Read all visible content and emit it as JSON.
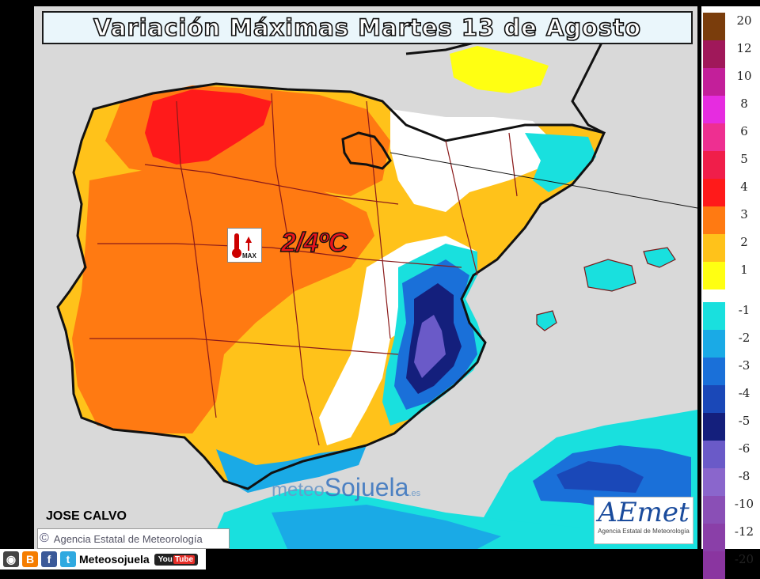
{
  "title": "Variación Máximas Martes 13 de Agosto",
  "highlight": "2/4ºC",
  "thermometer": {
    "label": "MAX",
    "icon": "thermometer-up-icon"
  },
  "author": "JOSE CALVO",
  "agency_credit": "Agencia Estatal de Meteorología",
  "agency_logo": {
    "text": "AEmet",
    "subtitle": "Agencia Estatal de Meteorología"
  },
  "watermark": {
    "part1": "meteo",
    "part2": "Sojuela",
    "suffix": ".es"
  },
  "social": {
    "handle": "Meteosojuela",
    "youtube_label": "You",
    "youtube_tube": "Tube",
    "icons": [
      "instagram-icon",
      "blogger-icon",
      "facebook-icon",
      "twitter-icon",
      "youtube-icon"
    ]
  },
  "legend": [
    {
      "label": "20",
      "color": "#7a3d0c"
    },
    {
      "label": "12",
      "color": "#a0185a"
    },
    {
      "label": "10",
      "color": "#c31f9a"
    },
    {
      "label": "8",
      "color": "#e62ce0"
    },
    {
      "label": "6",
      "color": "#ee2f91"
    },
    {
      "label": "5",
      "color": "#f01e4a"
    },
    {
      "label": "4",
      "color": "#ff1a1a"
    },
    {
      "label": "3",
      "color": "#ff7a12"
    },
    {
      "label": "2",
      "color": "#ffc21a"
    },
    {
      "label": "1",
      "color": "#ffff12"
    },
    {
      "label": "",
      "color": "#ffffff"
    },
    {
      "label": "-1",
      "color": "#19e0de"
    },
    {
      "label": "-2",
      "color": "#1aaae6"
    },
    {
      "label": "-3",
      "color": "#1a70d9"
    },
    {
      "label": "-4",
      "color": "#1a48b8"
    },
    {
      "label": "-5",
      "color": "#141f7c"
    },
    {
      "label": "-6",
      "color": "#6a5ac8"
    },
    {
      "label": "-8",
      "color": "#8a66cc"
    },
    {
      "label": "-10",
      "color": "#8a4fb6"
    },
    {
      "label": "-12",
      "color": "#8a3fa8"
    },
    {
      "label": "-20",
      "color": "#8a35a0"
    }
  ]
}
